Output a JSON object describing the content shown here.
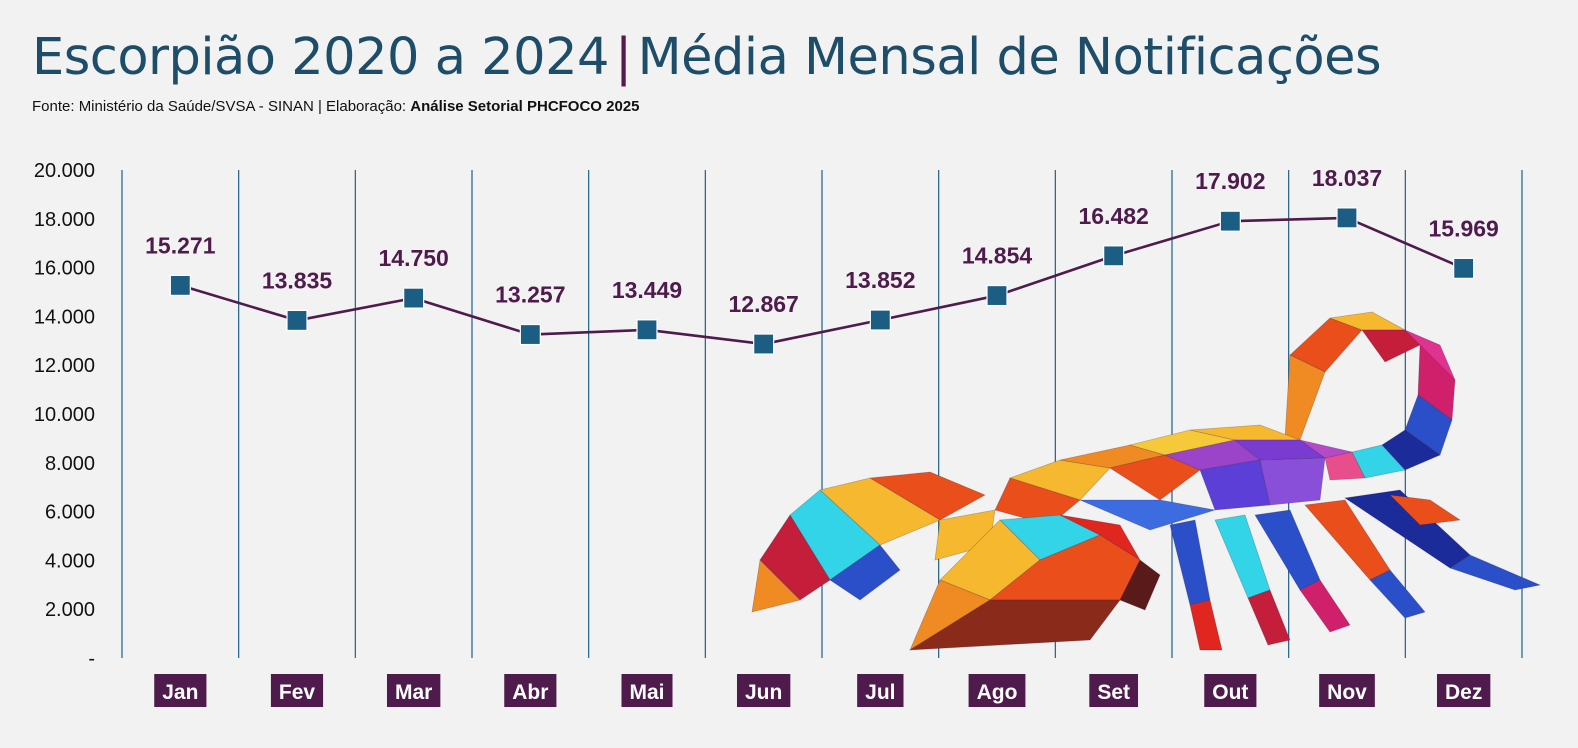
{
  "header": {
    "title_main": "Escorpião 2020 a 2024",
    "title_sep": "|",
    "title_sub": "Média Mensal de Notificações",
    "source_prefix": "Fonte: Ministério da Saúde/SVSA - SINAN | Elaboração: ",
    "source_bold": "Análise Setorial PHCFOCO 2025"
  },
  "chart_data": {
    "type": "line",
    "categories": [
      "Jan",
      "Fev",
      "Mar",
      "Abr",
      "Mai",
      "Jun",
      "Jul",
      "Ago",
      "Set",
      "Out",
      "Nov",
      "Dez"
    ],
    "values": [
      15271,
      13835,
      14750,
      13257,
      13449,
      12867,
      13852,
      14854,
      16482,
      17902,
      18037,
      15969
    ],
    "data_labels": [
      "15.271",
      "13.835",
      "14.750",
      "13.257",
      "13.449",
      "12.867",
      "13.852",
      "14.854",
      "16.482",
      "17.902",
      "18.037",
      "15.969"
    ],
    "yticks": [
      "-",
      "2.000",
      "4.000",
      "6.000",
      "8.000",
      "10.000",
      "12.000",
      "14.000",
      "16.000",
      "18.000",
      "20.000"
    ],
    "ylim": [
      0,
      20000
    ],
    "title": "",
    "xlabel": "",
    "ylabel": "",
    "grid": "vertical",
    "legend": "none",
    "colors": {
      "line": "#4e1b4c",
      "marker": "#1c5d84",
      "gridline": "#1d5f8a",
      "label": "#4e1b4c",
      "category_bg": "#4e1b4c"
    }
  },
  "decoration": {
    "illustration": "low-poly-scorpion-image"
  }
}
